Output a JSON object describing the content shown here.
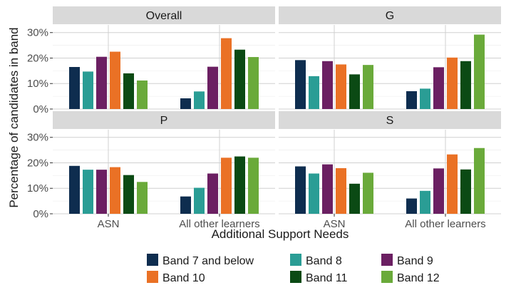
{
  "chart_data": {
    "type": "bar",
    "ylabel": "Percentage of candidates in band",
    "xlabel": "Additional Support Needs",
    "categories": [
      "ASN",
      "All other learners"
    ],
    "ylim": [
      0,
      33
    ],
    "yticks": [
      0,
      10,
      20,
      30
    ],
    "ytick_labels": [
      "0%",
      "10%",
      "20%",
      "30%"
    ],
    "grid": true,
    "legend_position": "bottom",
    "legend_title": "",
    "series": [
      {
        "name": "Band 7 and below",
        "color": "#0e2d4f"
      },
      {
        "name": "Band 8",
        "color": "#2a9d95"
      },
      {
        "name": "Band 9",
        "color": "#6b1f62"
      },
      {
        "name": "Band 10",
        "color": "#ea7125"
      },
      {
        "name": "Band 11",
        "color": "#0b4a14"
      },
      {
        "name": "Band 12",
        "color": "#6aaa3a"
      }
    ],
    "panels": [
      {
        "title": "Overall",
        "values": [
          [
            16.5,
            14.7,
            20.5,
            22.5,
            14,
            11.2
          ],
          [
            4.2,
            6.9,
            16.6,
            27.8,
            23.3,
            20.4
          ]
        ]
      },
      {
        "title": "G",
        "values": [
          [
            19.2,
            12.9,
            18.8,
            17.5,
            13.6,
            17.3
          ],
          [
            7,
            8,
            16.4,
            20.2,
            18.8,
            29.2
          ]
        ]
      },
      {
        "title": "P",
        "values": [
          [
            18.8,
            17.3,
            17.3,
            18.3,
            15.2,
            12.5
          ],
          [
            6.8,
            10.2,
            15.8,
            22,
            22.5,
            22
          ]
        ]
      },
      {
        "title": "S",
        "values": [
          [
            18.6,
            15.8,
            19.4,
            17.9,
            11.8,
            16.1
          ],
          [
            6,
            9,
            17.8,
            23.3,
            17.4,
            25.8
          ]
        ]
      }
    ]
  }
}
